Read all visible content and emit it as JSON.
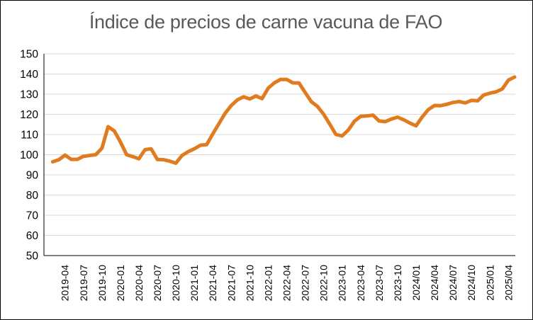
{
  "chart_data": {
    "type": "line",
    "title": "Índice de precios de carne vacuna de FAO",
    "xlabel": "",
    "ylabel": "",
    "ylim": [
      50,
      150
    ],
    "yticks": [
      50,
      60,
      70,
      80,
      90,
      100,
      110,
      120,
      130,
      140,
      150
    ],
    "grid": "horizontal",
    "legend": "none",
    "line_color": "#E07B1F",
    "x_tick_labels": [
      "2019-04",
      "2019-07",
      "2019-10",
      "2020-01",
      "2020-04",
      "2020-07",
      "2020-10",
      "2021-01",
      "2021-04",
      "2021-07",
      "2021-10",
      "2022-01",
      "2022-04",
      "2022-07",
      "2022-10",
      "2023-01",
      "2023-04",
      "2023-07",
      "2023-10",
      "2024/01",
      "2024/04",
      "2024/07",
      "2024/10",
      "2025/01",
      "2025/04"
    ],
    "x_tick_index": [
      2,
      5,
      8,
      11,
      14,
      17,
      20,
      23,
      26,
      29,
      32,
      35,
      38,
      41,
      44,
      47,
      50,
      53,
      56,
      59,
      62,
      65,
      68,
      71,
      74
    ],
    "series": [
      {
        "x": [
          "2019-02",
          "2019-03",
          "2019-04",
          "2019-05",
          "2019-06",
          "2019-07",
          "2019-08",
          "2019-09",
          "2019-10",
          "2019-11",
          "2019-12",
          "2020-01",
          "2020-02",
          "2020-03",
          "2020-04",
          "2020-05",
          "2020-06",
          "2020-07",
          "2020-08",
          "2020-09",
          "2020-10",
          "2020-11",
          "2020-12",
          "2021-01",
          "2021-02",
          "2021-03",
          "2021-04",
          "2021-05",
          "2021-06",
          "2021-07",
          "2021-08",
          "2021-09",
          "2021-10",
          "2021-11",
          "2021-12",
          "2022-01",
          "2022-02",
          "2022-03",
          "2022-04",
          "2022-05",
          "2022-06",
          "2022-07",
          "2022-08",
          "2022-09",
          "2022-10",
          "2022-11",
          "2022-12",
          "2023-01",
          "2023-02",
          "2023-03",
          "2023-04",
          "2023-05",
          "2023-06",
          "2023-07",
          "2023-08",
          "2023-09",
          "2023-10",
          "2023-11",
          "2023-12",
          "2024/01",
          "2024/02",
          "2024/03",
          "2024/04",
          "2024/05",
          "2024/06",
          "2024/07",
          "2024/08",
          "2024/09",
          "2024/10",
          "2024/11",
          "2024/12",
          "2025/01",
          "2025/02",
          "2025/03",
          "2025/04",
          "2025/05"
        ],
        "values": [
          96.5,
          97.5,
          99.8,
          97.7,
          97.7,
          99.2,
          99.6,
          100.0,
          103.2,
          113.9,
          111.8,
          106.3,
          100.0,
          99.0,
          98.0,
          102.5,
          102.9,
          97.6,
          97.5,
          96.8,
          95.8,
          99.6,
          101.5,
          102.9,
          104.7,
          105.0,
          110.3,
          115.4,
          120.5,
          124.4,
          127.2,
          128.7,
          127.6,
          129.1,
          127.8,
          133.0,
          135.6,
          137.3,
          137.3,
          135.6,
          135.5,
          130.8,
          126.2,
          123.9,
          120.0,
          115.1,
          110.0,
          109.3,
          112.2,
          116.6,
          119.0,
          119.2,
          119.6,
          116.7,
          116.4,
          117.7,
          118.6,
          117.3,
          115.7,
          114.3,
          118.7,
          122.4,
          124.4,
          124.3,
          125.0,
          125.9,
          126.3,
          125.7,
          126.9,
          126.7,
          129.6,
          130.5,
          131.2,
          132.6,
          137.0,
          138.5
        ]
      }
    ]
  }
}
